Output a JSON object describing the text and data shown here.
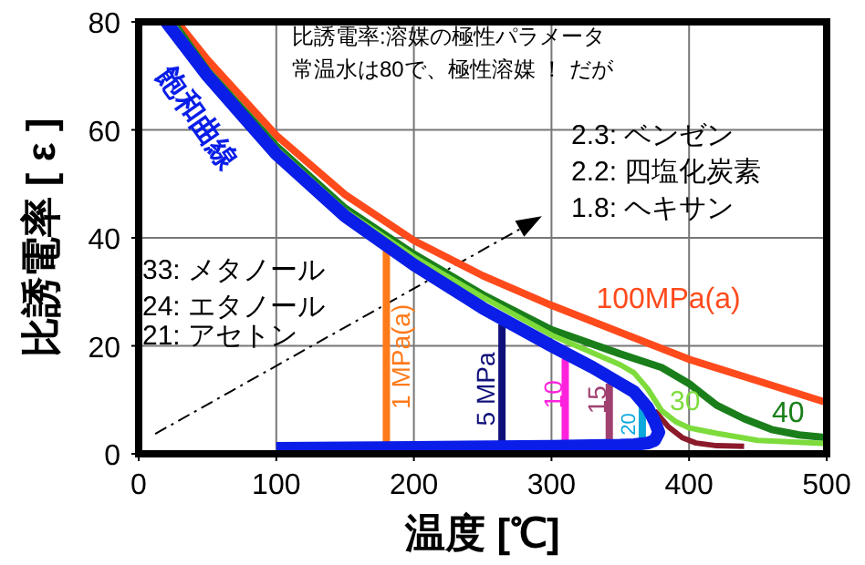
{
  "chart_data": {
    "type": "line",
    "xlabel": "温度 [℃]",
    "ylabel": "比誘電率 [ ε ]",
    "xlim": [
      0,
      500
    ],
    "xticks": [
      0,
      100,
      200,
      300,
      400,
      500
    ],
    "ylim": [
      0,
      80
    ],
    "yticks": [
      0,
      20,
      40,
      60,
      80
    ],
    "grid": true,
    "marker": "none",
    "line_style": "solid",
    "series": [
      {
        "name": "100MPa(a)",
        "color": "#ff4a1c",
        "x": [
          28,
          50,
          100,
          150,
          200,
          250,
          300,
          350,
          400,
          450,
          500
        ],
        "values": [
          80,
          73,
          59,
          48,
          39.5,
          33,
          27.5,
          22.5,
          17.5,
          13.5,
          9.5
        ]
      },
      {
        "name": "40",
        "color": "#1a7f1a",
        "x": [
          25,
          50,
          100,
          150,
          200,
          250,
          300,
          350,
          380,
          400,
          420,
          440,
          460,
          480,
          500
        ],
        "values": [
          80,
          71,
          57,
          45.5,
          37,
          29.5,
          23,
          18.5,
          16,
          13,
          9,
          6.5,
          4.5,
          3.5,
          3
        ]
      },
      {
        "name": "30",
        "color": "#7ddc3c",
        "x": [
          24,
          50,
          100,
          150,
          200,
          250,
          300,
          350,
          360,
          370,
          380,
          390,
          400,
          420,
          450,
          500
        ],
        "values": [
          80,
          70.5,
          56.5,
          45,
          36.5,
          29,
          22,
          16.5,
          15,
          12,
          8,
          6,
          4.8,
          3.8,
          2.5,
          1.9
        ]
      },
      {
        "name": null,
        "color": "#8b1a2a",
        "x": [
          375,
          385,
          395,
          405,
          420,
          440
        ],
        "values": [
          8,
          5,
          3,
          2,
          1.5,
          1.4
        ]
      },
      {
        "name": "1 MPa(a)",
        "color": "#ff7a1a",
        "x": [
          180,
          180
        ],
        "values": [
          38,
          1.5
        ]
      },
      {
        "name": "5 MPa",
        "color": "#10107a",
        "x": [
          264,
          264
        ],
        "values": [
          24,
          1.5
        ]
      },
      {
        "name": "10",
        "color": "#ff22dd",
        "x": [
          310,
          310
        ],
        "values": [
          17.6,
          1.5
        ]
      },
      {
        "name": "15",
        "color": "#a04070",
        "x": [
          342,
          342
        ],
        "values": [
          13,
          1.5
        ]
      },
      {
        "name": "20",
        "color": "#0aa8dc",
        "x": [
          366,
          366
        ],
        "values": [
          9.5,
          1.5
        ]
      },
      {
        "name": "飽和曲線",
        "color": "#0a1ee8",
        "x": [
          20,
          50,
          100,
          150,
          200,
          250,
          300,
          330,
          350,
          360,
          370,
          375,
          378,
          375,
          370,
          360,
          350,
          300,
          200,
          100
        ],
        "values": [
          80,
          70,
          55.5,
          44,
          35,
          27,
          20,
          16,
          13,
          11.5,
          8.5,
          6,
          4,
          2.5,
          2,
          1.7,
          1.6,
          1.4,
          1.2,
          1
        ]
      }
    ],
    "annotations": [
      "比誘電率:溶媒の極性パラメータ",
      "常温水は80で、極性溶媒 ！ だが",
      "2.3: ベンゼン",
      "2.2: 四塩化炭素",
      "1.8: ヘキサン",
      "33: メタノール",
      "24: エタノール",
      "21: アセトン"
    ]
  }
}
